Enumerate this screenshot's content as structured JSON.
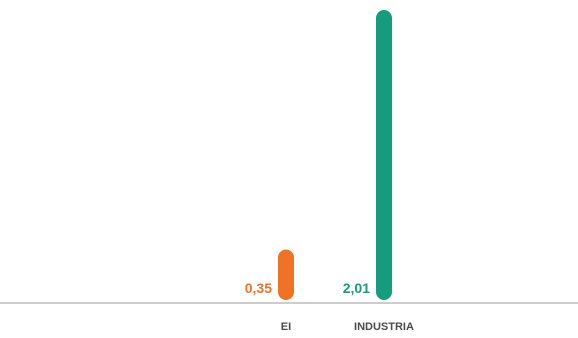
{
  "chart_data": {
    "type": "bar",
    "categories": [
      "EI",
      "INDUSTRIA"
    ],
    "values": [
      0.35,
      2.01
    ],
    "value_labels": [
      "0,35",
      "2,01"
    ],
    "colors": [
      "#EE7326",
      "#159C7C"
    ],
    "axis_color": "#9A9A9A",
    "ylim": [
      0,
      2.01
    ],
    "grid": false,
    "legend": "none"
  }
}
